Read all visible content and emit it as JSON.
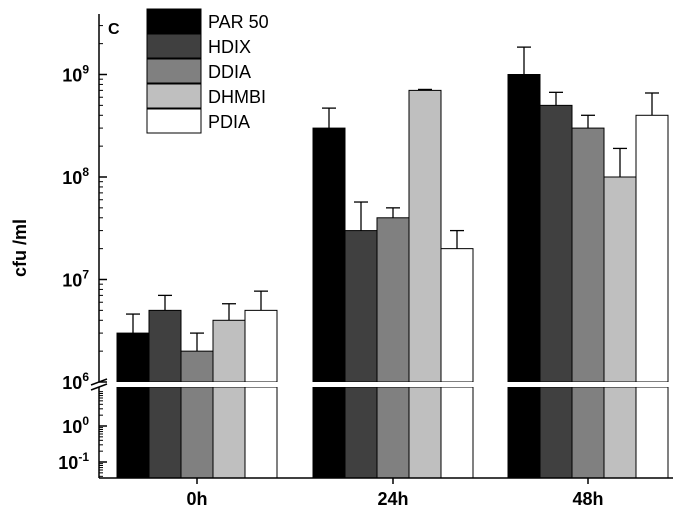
{
  "panel_letter": "C",
  "colors": {
    "PAR 50": "#000000",
    "HDIX": "#404040",
    "DDIA": "#808080",
    "DHMBI": "#bfbfbf",
    "PDIA": "#ffffff"
  },
  "chart_data": {
    "type": "bar",
    "scale": "log (broken axis)",
    "ylabel": "cfu  /ml",
    "xlabel": "",
    "categories": [
      "0h",
      "24h",
      "48h"
    ],
    "upper_ylim": [
      1000000,
      3000000000
    ],
    "lower_ylim": [
      0.05,
      20
    ],
    "y_ticks_upper": [
      {
        "mantissa": "10",
        "exp": "6",
        "value": 1000000
      },
      {
        "mantissa": "10",
        "exp": "7",
        "value": 10000000
      },
      {
        "mantissa": "10",
        "exp": "8",
        "value": 100000000
      },
      {
        "mantissa": "10",
        "exp": "9",
        "value": 1000000000
      }
    ],
    "y_ticks_lower": [
      {
        "mantissa": "10",
        "exp": "0",
        "value": 1
      },
      {
        "mantissa": "10",
        "exp": "-1",
        "value": 0.1
      }
    ],
    "legend_position": "top-left",
    "series": [
      {
        "name": "PAR 50",
        "values": [
          3000000,
          300000000,
          1000000000
        ],
        "errors": [
          4600000,
          470000000,
          1850000000
        ]
      },
      {
        "name": "HDIX",
        "values": [
          5000000,
          30000000,
          500000000
        ],
        "errors": [
          7000000,
          57000000,
          670000000
        ]
      },
      {
        "name": "DDIA",
        "values": [
          2000000,
          40000000,
          300000000
        ],
        "errors": [
          3000000,
          50000000,
          400000000
        ]
      },
      {
        "name": "DHMBI",
        "values": [
          4000000,
          700000000,
          100000000
        ],
        "errors": [
          5800000,
          715000000,
          190000000
        ]
      },
      {
        "name": "PDIA",
        "values": [
          5000000,
          20000000,
          400000000
        ],
        "errors": [
          7700000,
          30000000,
          660000000
        ]
      }
    ]
  }
}
